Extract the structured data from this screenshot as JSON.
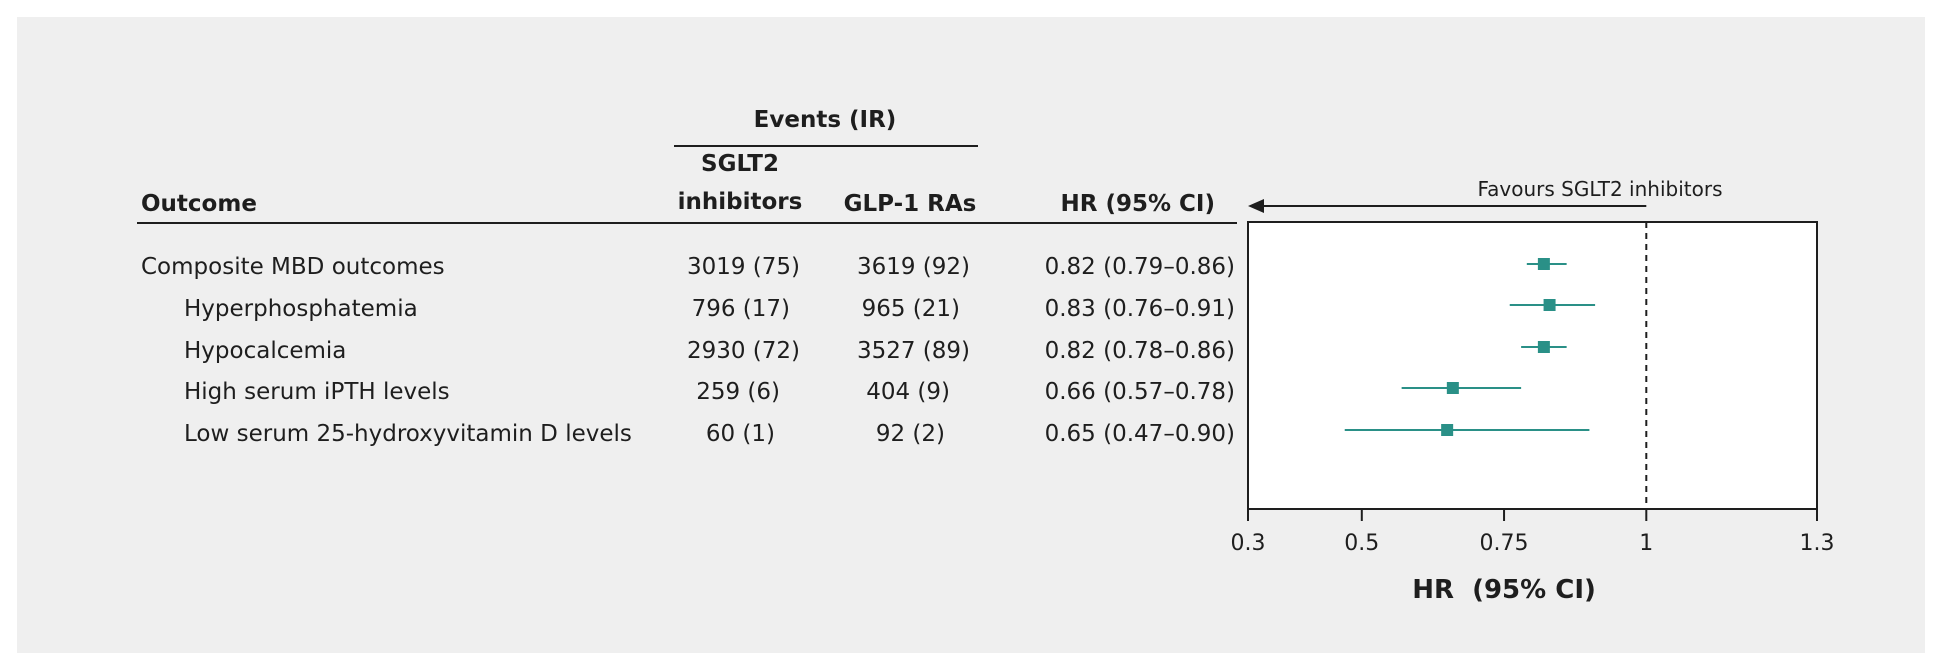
{
  "table": {
    "events_header": "Events (IR)",
    "outcome_header": "Outcome",
    "sglt2_header_line1": "SGLT2",
    "sglt2_header_line2": "inhibitors",
    "glp1_header": "GLP-1 RAs",
    "hr_header": "HR (95% CI)",
    "rows": [
      {
        "outcome": "Composite MBD outcomes",
        "indent": false,
        "sglt2": "3019 (75)",
        "glp1": "3619 (92)",
        "hr": "0.82 (0.79–0.86)"
      },
      {
        "outcome": "Hyperphosphatemia",
        "indent": true,
        "sglt2": "796 (17)",
        "glp1": "965 (21)",
        "hr": "0.83 (0.76–0.91)"
      },
      {
        "outcome": "Hypocalcemia",
        "indent": true,
        "sglt2": "2930 (72)",
        "glp1": "3527 (89)",
        "hr": "0.82 (0.78–0.86)"
      },
      {
        "outcome": "High serum iPTH  levels",
        "indent": true,
        "sglt2": "259 (6)",
        "glp1": "404 (9)",
        "hr": "0.66 (0.57–0.78)"
      },
      {
        "outcome": "Low serum 25-hydroxyvitamin D  levels",
        "indent": true,
        "sglt2": "60 (1)",
        "glp1": "92 (2)",
        "hr": "0.65 (0.47–0.90)"
      }
    ]
  },
  "chart_data": {
    "type": "scatter",
    "subtype": "forest-plot",
    "favours_label": "Favours SGLT2 inhibitors",
    "xlabel": "HR  (95% CI)",
    "xlim": [
      0.3,
      1.3
    ],
    "xticks": [
      0.3,
      0.5,
      0.75,
      1,
      1.3
    ],
    "xtick_labels": [
      "0.3",
      "0.5",
      "0.75",
      "1",
      "1.3"
    ],
    "reference_line": 1,
    "categories": [
      "Composite MBD outcomes",
      "Hyperphosphatemia",
      "Hypocalcemia",
      "High serum iPTH  levels",
      "Low serum 25-hydroxyvitamin D  levels"
    ],
    "series": [
      {
        "hr": 0.82,
        "lower": 0.79,
        "upper": 0.86
      },
      {
        "hr": 0.83,
        "lower": 0.76,
        "upper": 0.91
      },
      {
        "hr": 0.82,
        "lower": 0.78,
        "upper": 0.86
      },
      {
        "hr": 0.66,
        "lower": 0.57,
        "upper": 0.78
      },
      {
        "hr": 0.65,
        "lower": 0.47,
        "upper": 0.9
      }
    ],
    "grid": false,
    "marker_color": "#2a9087"
  }
}
